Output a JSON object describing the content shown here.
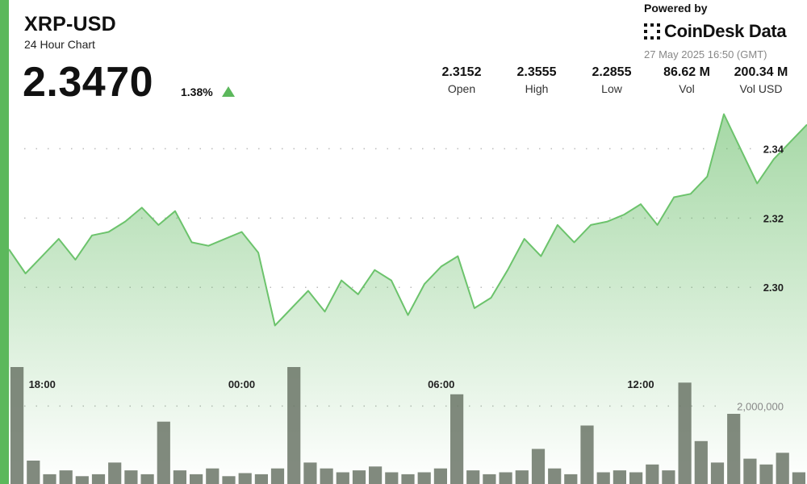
{
  "header": {
    "title": "XRP-USD",
    "subtitle": "24 Hour Chart",
    "price": "2.3470",
    "change": "1.38%",
    "powered_by": "Powered by",
    "brand": "CoinDesk Data",
    "timestamp": "27 May 2025 16:50 (GMT)"
  },
  "stats": [
    {
      "value": "2.3152",
      "label": "Open"
    },
    {
      "value": "2.3555",
      "label": "High"
    },
    {
      "value": "2.2855",
      "label": "Low"
    },
    {
      "value": "86.62 M",
      "label": "Vol"
    },
    {
      "value": "200.34 M",
      "label": "Vol USD"
    }
  ],
  "colors": {
    "accent": "#5cb85c",
    "line": "#6cc36c",
    "volume_bar": "#6b7567"
  },
  "chart_data": {
    "type": "line",
    "title": "",
    "xlabel": "",
    "ylabel": "",
    "x_ticks": [
      "18:00",
      "00:00",
      "06:00",
      "12:00"
    ],
    "y_ticks": [
      2.3,
      2.32,
      2.34
    ],
    "volume_tick": "2,000,000",
    "ylim": [
      2.26,
      2.355
    ],
    "volume_max": 3000000,
    "grid": "dotted-horizontal",
    "x": [
      "16:50",
      "17:20",
      "17:50",
      "18:20",
      "18:50",
      "19:20",
      "19:50",
      "20:20",
      "20:50",
      "21:20",
      "21:50",
      "22:20",
      "22:50",
      "23:20",
      "23:50",
      "00:20",
      "00:50",
      "01:20",
      "01:50",
      "02:20",
      "02:50",
      "03:20",
      "03:50",
      "04:20",
      "04:50",
      "05:20",
      "05:50",
      "06:20",
      "06:50",
      "07:20",
      "07:50",
      "08:20",
      "08:50",
      "09:20",
      "09:50",
      "10:20",
      "10:50",
      "11:20",
      "11:50",
      "12:20",
      "12:50",
      "13:20",
      "13:50",
      "14:20",
      "14:50",
      "15:20",
      "15:50",
      "16:20",
      "16:50"
    ],
    "series": [
      {
        "values": [
          2.311,
          2.304,
          2.309,
          2.314,
          2.308,
          2.315,
          2.316,
          2.319,
          2.323,
          2.318,
          2.322,
          2.313,
          2.312,
          2.314,
          2.316,
          2.31,
          2.289,
          2.294,
          2.299,
          2.293,
          2.302,
          2.298,
          2.305,
          2.302,
          2.292,
          2.301,
          2.306,
          2.309,
          2.294,
          2.297,
          2.305,
          2.314,
          2.309,
          2.318,
          2.313,
          2.318,
          2.319,
          2.321,
          2.324,
          2.318,
          2.326,
          2.327,
          2.332,
          2.35,
          2.34,
          2.33,
          2.337,
          2.342,
          2.347
        ]
      }
    ],
    "volume": [
      3000000,
      600000,
      250000,
      350000,
      200000,
      250000,
      550000,
      350000,
      250000,
      1600000,
      350000,
      250000,
      400000,
      200000,
      280000,
      250000,
      400000,
      3000000,
      550000,
      400000,
      300000,
      350000,
      450000,
      300000,
      250000,
      300000,
      400000,
      2300000,
      350000,
      250000,
      300000,
      350000,
      900000,
      400000,
      250000,
      1500000,
      300000,
      350000,
      300000,
      500000,
      350000,
      2600000,
      1100000,
      550000,
      1800000,
      650000,
      500000,
      800000,
      300000
    ]
  }
}
